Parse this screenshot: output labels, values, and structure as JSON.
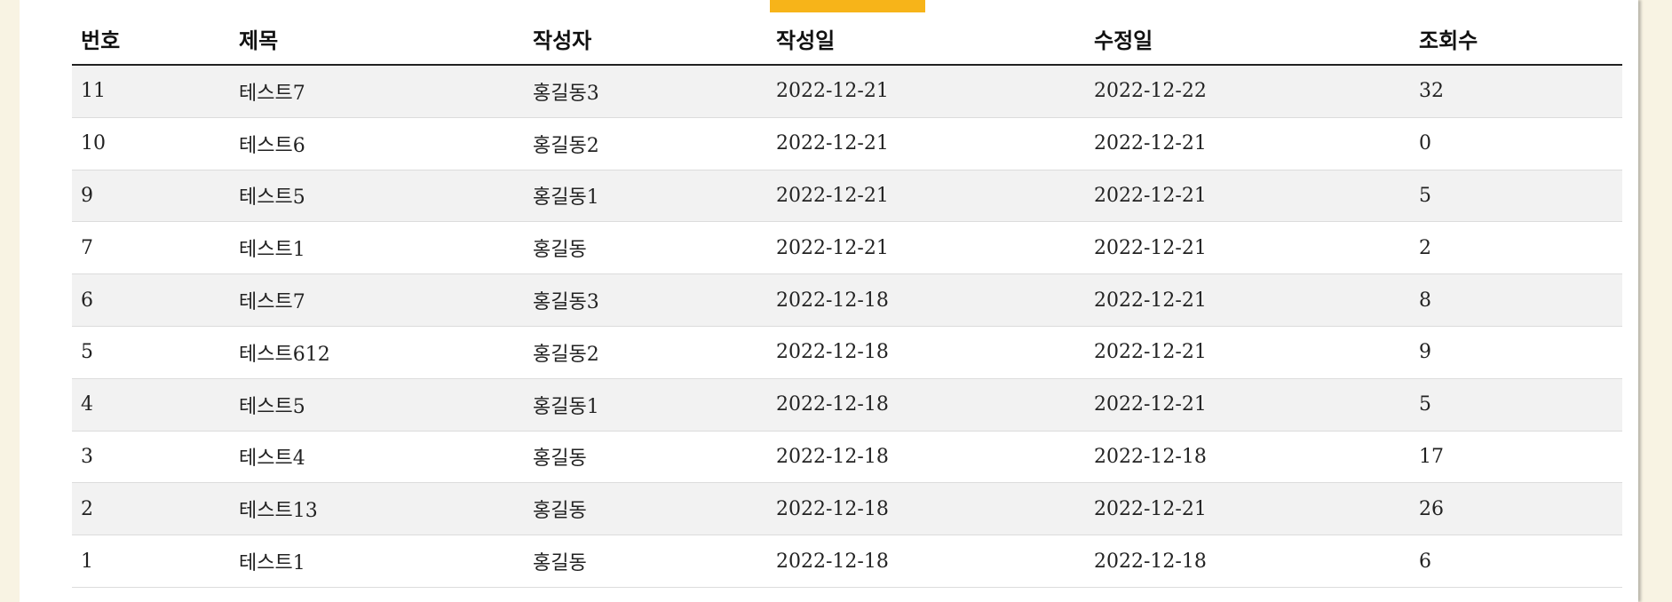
{
  "board": {
    "columns": [
      "번호",
      "제목",
      "작성자",
      "작성일",
      "수정일",
      "조회수"
    ],
    "rows": [
      [
        "11",
        "테스트7",
        "홍길동3",
        "2022-12-21",
        "2022-12-22",
        "32"
      ],
      [
        "10",
        "테스트6",
        "홍길동2",
        "2022-12-21",
        "2022-12-21",
        "0"
      ],
      [
        "9",
        "테스트5",
        "홍길동1",
        "2022-12-21",
        "2022-12-21",
        "5"
      ],
      [
        "7",
        "테스트1",
        "홍길동",
        "2022-12-21",
        "2022-12-21",
        "2"
      ],
      [
        "6",
        "테스트7",
        "홍길동3",
        "2022-12-18",
        "2022-12-21",
        "8"
      ],
      [
        "5",
        "테스트612",
        "홍길동2",
        "2022-12-18",
        "2022-12-21",
        "9"
      ],
      [
        "4",
        "테스트5",
        "홍길동1",
        "2022-12-18",
        "2022-12-21",
        "5"
      ],
      [
        "3",
        "테스트4",
        "홍길동",
        "2022-12-18",
        "2022-12-18",
        "17"
      ],
      [
        "2",
        "테스트13",
        "홍길동",
        "2022-12-18",
        "2022-12-21",
        "26"
      ],
      [
        "1",
        "테스트1",
        "홍길동",
        "2022-12-18",
        "2022-12-18",
        "6"
      ]
    ]
  },
  "colors": {
    "accent": "#f7b419",
    "page_background": "#f8f3e3",
    "row_stripe": "#f2f2f2"
  }
}
